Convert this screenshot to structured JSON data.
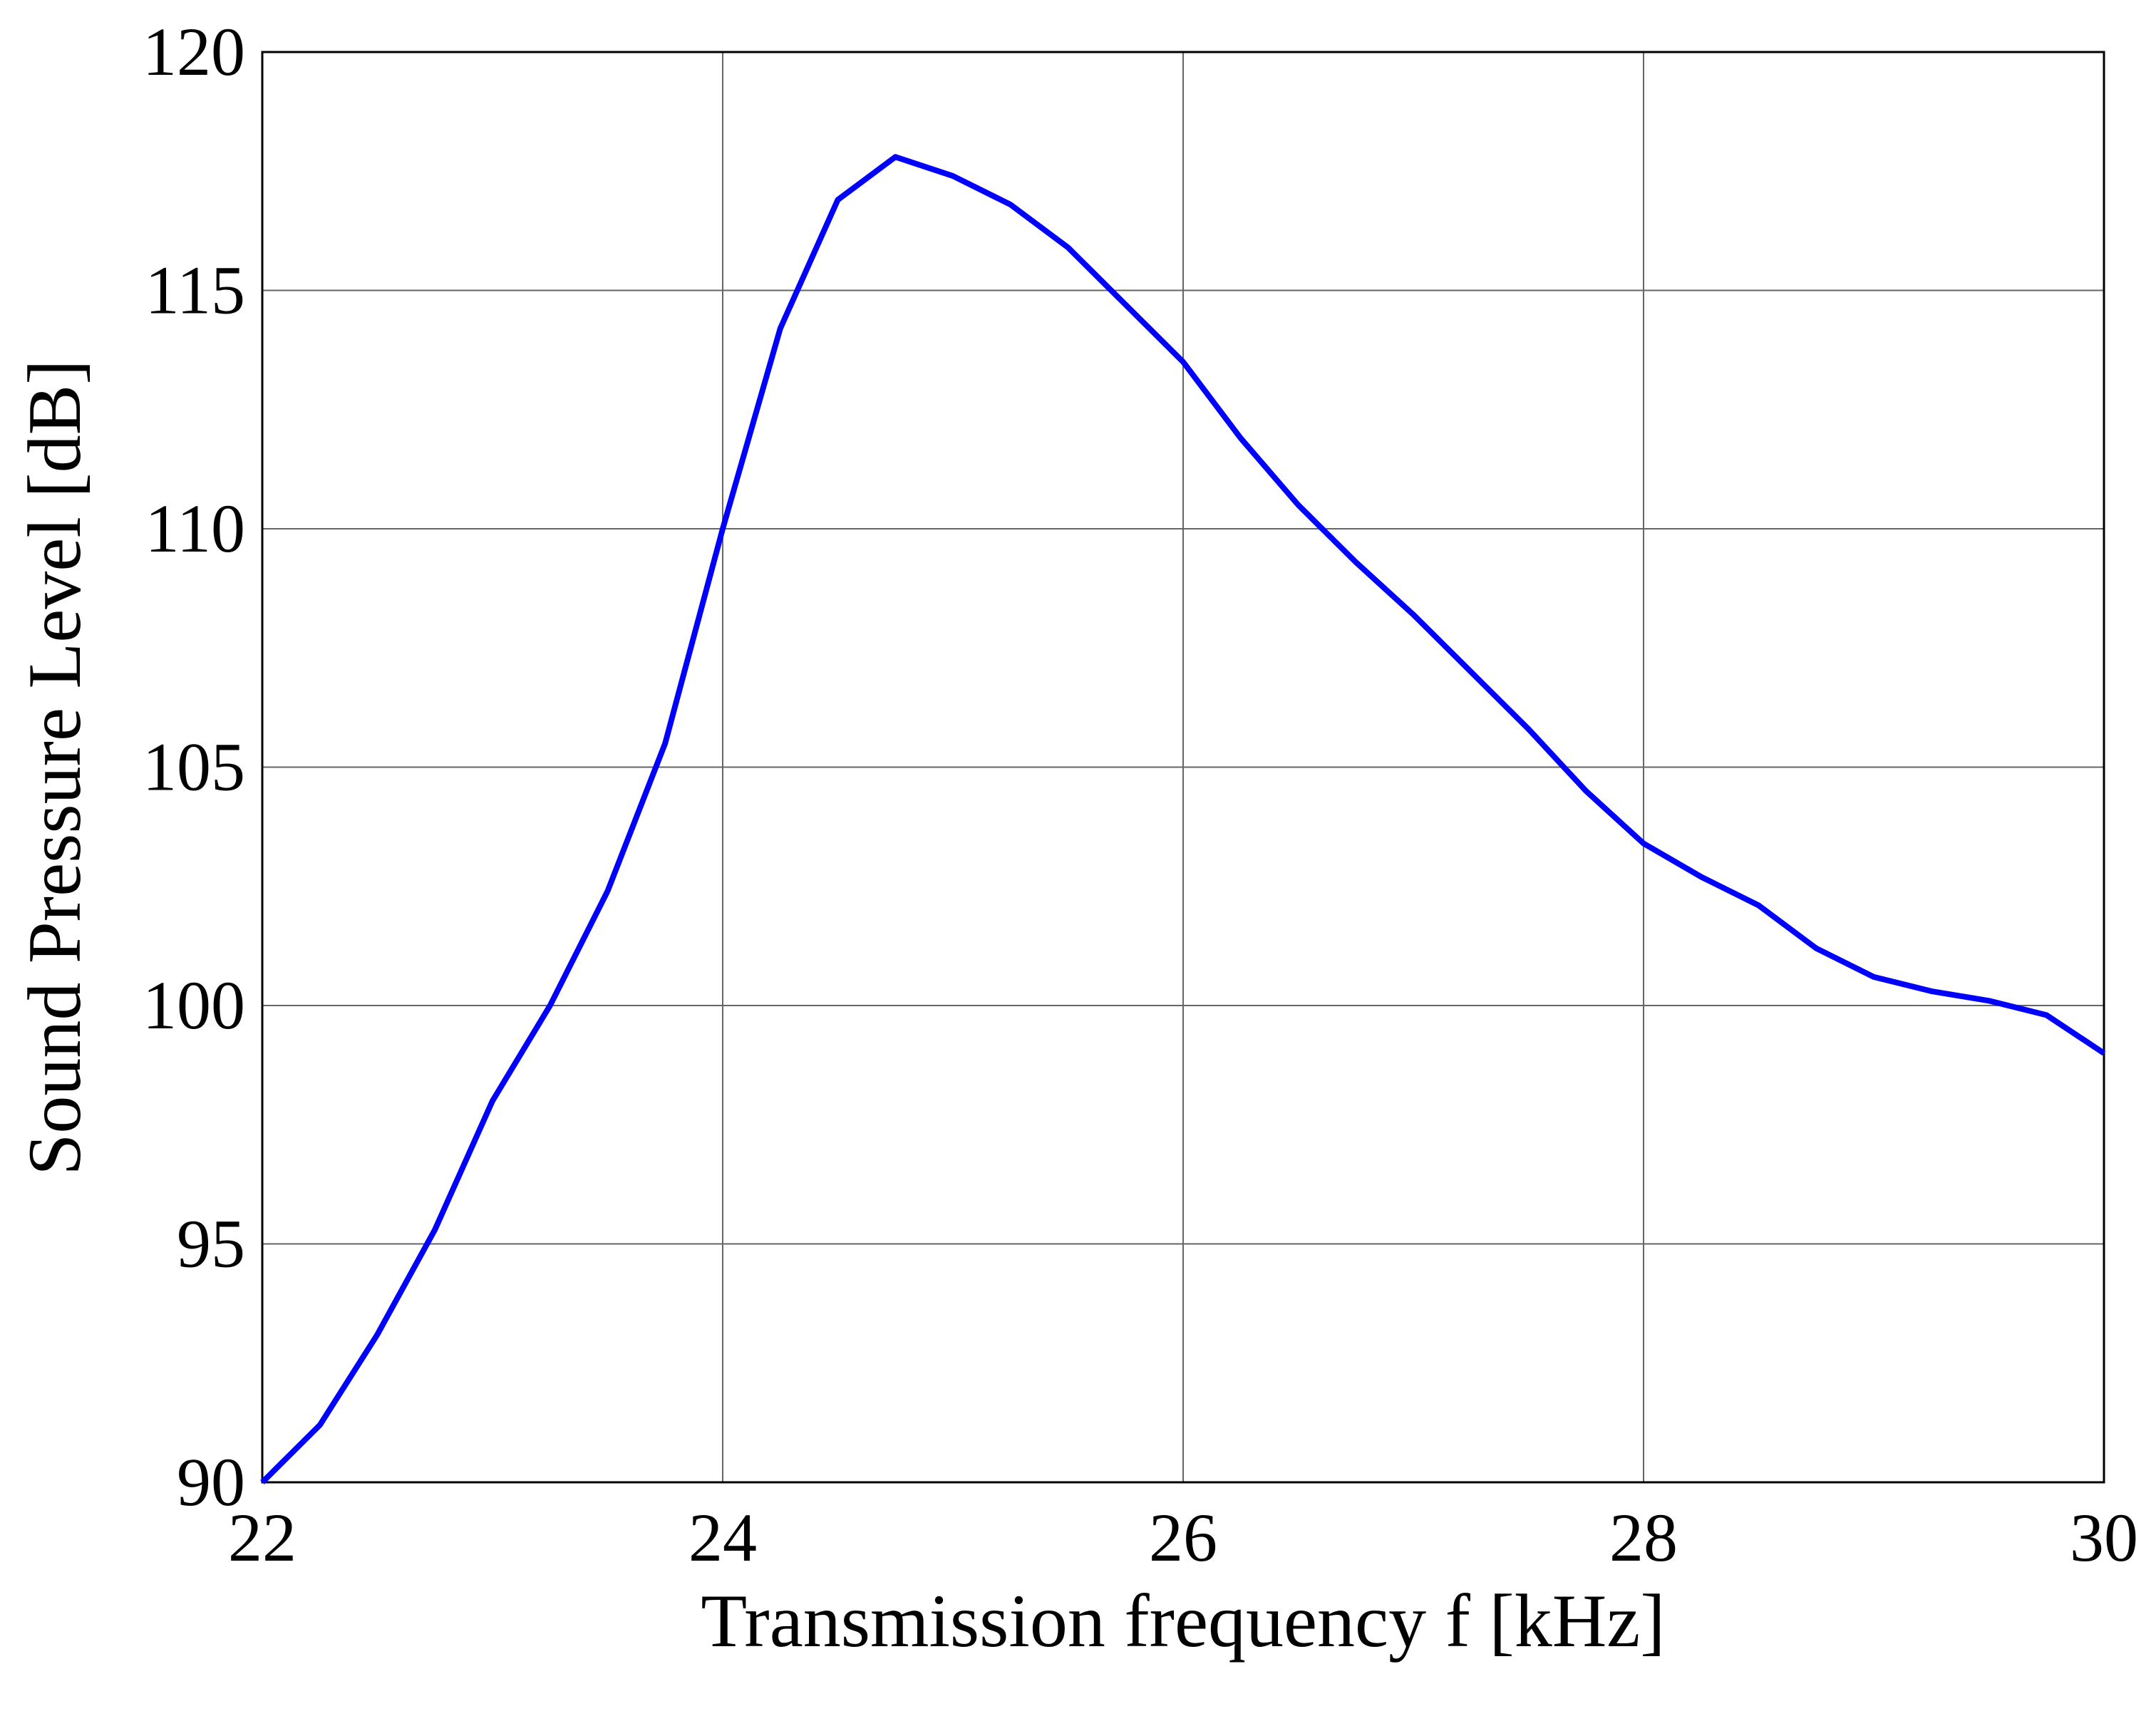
{
  "chart_data": {
    "type": "line",
    "xlabel": "Transmission frequency f [kHz]",
    "ylabel": "Sound Pressure Level [dB]",
    "x": [
      22.0,
      22.25,
      22.5,
      22.75,
      23.0,
      23.25,
      23.5,
      23.75,
      24.0,
      24.25,
      24.5,
      24.75,
      25.0,
      25.25,
      25.5,
      25.75,
      26.0,
      26.25,
      26.5,
      26.75,
      27.0,
      27.25,
      27.5,
      27.75,
      28.0,
      28.25,
      28.5,
      28.75,
      29.0,
      29.25,
      29.5,
      29.75,
      30.0
    ],
    "series": [
      {
        "color": "#0000ff",
        "values": [
          90.0,
          91.2,
          93.1,
          95.3,
          98.0,
          100.0,
          102.4,
          105.5,
          110.0,
          114.2,
          116.9,
          117.8,
          117.4,
          116.8,
          115.9,
          114.7,
          113.5,
          111.9,
          110.5,
          109.3,
          108.2,
          107.0,
          105.8,
          104.5,
          103.4,
          102.7,
          102.1,
          101.2,
          100.6,
          100.3,
          100.1,
          99.8,
          99.0
        ]
      }
    ],
    "xlim": [
      22,
      30
    ],
    "xticks": [
      22,
      24,
      26,
      28,
      30
    ],
    "ylim": [
      90,
      120
    ],
    "yticks": [
      90,
      95,
      100,
      105,
      110,
      115,
      120
    ],
    "grid": true
  }
}
